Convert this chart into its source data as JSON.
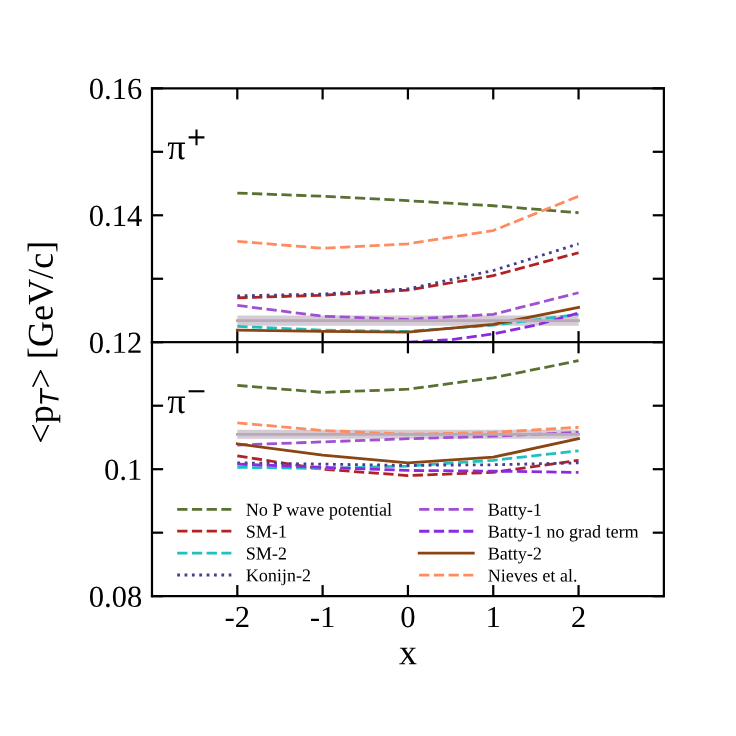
{
  "chart_data": [
    {
      "type": "line",
      "annotations": [
        "π$^{+}$"
      ],
      "ylabel": "<p$_{T}$> [GeV/c]",
      "xlim": [
        -3,
        3
      ],
      "xticks": [
        -2,
        -1,
        0,
        1,
        2
      ],
      "ylim": [
        0.12,
        0.16
      ],
      "yticks": [
        0.12,
        {
          "value": 0.13,
          "label": null
        },
        0.14,
        {
          "value": 0.15,
          "label": null
        },
        0.16
      ],
      "tick_labels": "y",
      "grid": false,
      "x": [
        -2,
        -1,
        0,
        1,
        2
      ],
      "series": [
        {
          "color": "#5a7030",
          "line_style": "dashed",
          "values": [
            0.1435,
            0.143,
            0.1423,
            0.1415,
            0.1404
          ]
        },
        {
          "color": "#b22222",
          "line_style": "dashed",
          "values": [
            0.127,
            0.1274,
            0.1282,
            0.1305,
            0.1341
          ]
        },
        {
          "color": "#20c0c0",
          "line_style": "dashed",
          "values": [
            0.1225,
            0.1219,
            0.1217,
            0.1227,
            0.1244
          ]
        },
        {
          "color": "#483d8b",
          "line_style": "dotted",
          "values": [
            0.1273,
            0.1276,
            0.1284,
            0.1313,
            0.1355
          ]
        },
        {
          "color": "#a050d0",
          "line_style": "dashed",
          "values": [
            0.1258,
            0.1241,
            0.1236,
            0.1244,
            0.1278
          ]
        },
        {
          "color": "#8a2be2",
          "line_style": "dashed",
          "x": [
            0,
            0.5,
            1,
            1.5,
            2
          ],
          "values": [
            0.12,
            0.1204,
            0.1213,
            0.1227,
            0.1246
          ]
        },
        {
          "color": "#8b4513",
          "line_style": "solid",
          "values": [
            0.1219,
            0.1217,
            0.1216,
            0.1228,
            0.1255
          ]
        },
        {
          "color": "#ff8c60",
          "line_style": "dashed",
          "values": [
            0.1359,
            0.1348,
            0.1355,
            0.1376,
            0.143
          ]
        },
        {
          "color": "#b8a8b8",
          "line_style": "solid",
          "values": [
            0.1234,
            0.1234,
            0.1234,
            0.1234,
            0.1234
          ],
          "lower": [
            0.1226,
            0.1226,
            0.1226,
            0.1226,
            0.1226
          ],
          "upper": [
            0.1242,
            0.1242,
            0.1242,
            0.1242,
            0.1242
          ]
        }
      ]
    },
    {
      "type": "line",
      "annotations": [
        "π$^{−}$"
      ],
      "xlabel": "x",
      "xlim": [
        -3,
        3
      ],
      "xticks": [
        -2,
        -1,
        0,
        1,
        2
      ],
      "ylim": [
        0.08,
        0.12
      ],
      "yticks": [
        0.08,
        {
          "value": 0.09,
          "label": null
        },
        0.1,
        {
          "value": 0.11,
          "label": null
        },
        {
          "value": 0.12,
          "label": null
        }
      ],
      "grid": false,
      "legend": "bottom",
      "x": [
        -2,
        -1,
        0,
        1,
        2
      ],
      "series": [
        {
          "name": "No P wave potential",
          "color": "#5a7030",
          "line_style": "dashed",
          "values": [
            0.1132,
            0.1121,
            0.1126,
            0.1144,
            0.1171
          ]
        },
        {
          "name": "SM-1",
          "color": "#b22222",
          "line_style": "dashed",
          "values": [
            0.1021,
            0.1,
            0.099,
            0.0995,
            0.1014
          ]
        },
        {
          "name": "SM-2",
          "color": "#20c0c0",
          "line_style": "dashed",
          "values": [
            0.1003,
            0.1001,
            0.1005,
            0.1014,
            0.1029
          ]
        },
        {
          "name": "Konijn-2",
          "color": "#483d8b",
          "line_style": "dotted",
          "values": [
            0.101,
            0.1008,
            0.1006,
            0.1007,
            0.101
          ]
        },
        {
          "name": "Batty-1",
          "color": "#a050d0",
          "line_style": "dashed",
          "values": [
            0.1038,
            0.1043,
            0.1048,
            0.1052,
            0.1058
          ]
        },
        {
          "name": "Batty-1 no grad term",
          "color": "#8a2be2",
          "line_style": "dashed",
          "values": [
            0.1008,
            0.1003,
            0.0998,
            0.0997,
            0.0995
          ]
        },
        {
          "name": "Batty-2",
          "color": "#8b4513",
          "line_style": "solid",
          "values": [
            0.104,
            0.1022,
            0.101,
            0.1019,
            0.1048
          ]
        },
        {
          "name": "Nieves et al.",
          "color": "#ff8c60",
          "line_style": "dashed",
          "values": [
            0.1073,
            0.1061,
            0.1055,
            0.1058,
            0.1066
          ]
        },
        {
          "color": "#b8a8b8",
          "line_style": "solid",
          "values": [
            0.1055,
            0.1055,
            0.1055,
            0.1055,
            0.1055
          ],
          "lower": [
            0.1048,
            0.1048,
            0.1048,
            0.1048,
            0.1048
          ],
          "upper": [
            0.1062,
            0.1062,
            0.1062,
            0.1062,
            0.1062
          ]
        }
      ]
    }
  ]
}
